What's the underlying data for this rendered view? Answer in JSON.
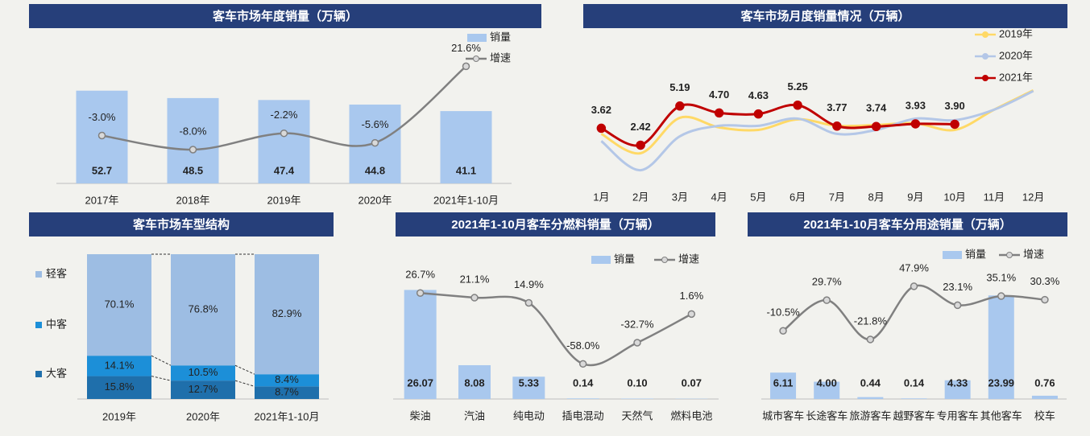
{
  "chart_data": [
    {
      "type": "bar",
      "title": "客车市场年度销量（万辆）",
      "categories": [
        "2017年",
        "2018年",
        "2019年",
        "2020年",
        "2021年1-10月"
      ],
      "series": [
        {
          "name": "销量",
          "color": "#a9c8ee",
          "values": [
            52.7,
            48.5,
            47.4,
            44.8,
            41.1
          ]
        },
        {
          "name": "增速",
          "color": "#808080",
          "axis": "y2",
          "values": [
            -3.0,
            -8.0,
            -2.2,
            -5.6,
            21.6
          ],
          "value_labels": [
            "-3.0%",
            "-8.0%",
            "-2.2%",
            "-5.6%",
            "21.6%"
          ]
        }
      ],
      "ylim": [
        0,
        80
      ],
      "y2lim": [
        -20,
        30
      ],
      "legend": "upper right"
    },
    {
      "type": "line",
      "title": "客车市场月度销量情况（万辆）",
      "categories": [
        "1月",
        "2月",
        "3月",
        "4月",
        "5月",
        "6月",
        "7月",
        "8月",
        "9月",
        "10月",
        "11月",
        "12月"
      ],
      "series": [
        {
          "name": "2019年",
          "color": "#ffd966",
          "values": [
            3.22,
            1.85,
            4.36,
            3.68,
            3.5,
            4.25,
            3.79,
            3.85,
            3.97,
            3.5,
            4.93,
            6.3
          ]
        },
        {
          "name": "2020年",
          "color": "#b4c7e7",
          "values": [
            2.71,
            0.65,
            3.05,
            3.79,
            3.79,
            4.3,
            3.22,
            3.5,
            4.3,
            4.19,
            4.93,
            6.25
          ]
        },
        {
          "name": "2021年",
          "color": "#c00000",
          "values": [
            3.62,
            2.42,
            5.19,
            4.7,
            4.63,
            5.25,
            3.77,
            3.74,
            3.93,
            3.9,
            null,
            null
          ],
          "value_labels": [
            "3.62",
            "2.42",
            "5.19",
            "4.70",
            "4.63",
            "5.25",
            "3.77",
            "3.74",
            "3.93",
            "3.90",
            null,
            null
          ]
        }
      ],
      "ylim": [
        0,
        7
      ],
      "legend": "upper right"
    },
    {
      "type": "bar",
      "stacked": true,
      "title": "客车市场车型结构",
      "categories": [
        "2019年",
        "2020年",
        "2021年1-10月"
      ],
      "series": [
        {
          "name": "大客",
          "color": "#1f6fab",
          "values": [
            15.8,
            12.7,
            8.7
          ],
          "value_labels": [
            "15.8%",
            "12.7%",
            "8.7%"
          ]
        },
        {
          "name": "中客",
          "color": "#1c8fd8",
          "values": [
            14.1,
            10.5,
            8.4
          ],
          "value_labels": [
            "14.1%",
            "10.5%",
            "8.4%"
          ]
        },
        {
          "name": "轻客",
          "color": "#9dbde3",
          "values": [
            70.1,
            76.8,
            82.9
          ],
          "value_labels": [
            "70.1%",
            "76.8%",
            "82.9%"
          ]
        }
      ],
      "ylim": [
        0,
        100
      ],
      "legend": "left"
    },
    {
      "type": "bar",
      "title": "2021年1-10月客车分燃料销量（万辆）",
      "categories": [
        "柴油",
        "汽油",
        "纯电动",
        "插电混动",
        "天然气",
        "燃料电池"
      ],
      "series": [
        {
          "name": "销量",
          "color": "#a9c8ee",
          "values": [
            26.07,
            8.08,
            5.33,
            0.14,
            0.1,
            0.07
          ],
          "value_labels": [
            "26.07",
            "8.08",
            "5.33",
            "0.14",
            "0.10",
            "0.07"
          ]
        },
        {
          "name": "增速",
          "color": "#808080",
          "axis": "y2",
          "values": [
            26.7,
            21.1,
            14.9,
            -58.0,
            -32.7,
            1.6
          ],
          "value_labels": [
            "26.7%",
            "21.1%",
            "14.9%",
            "-58.0%",
            "-32.7%",
            "1.6%"
          ]
        }
      ],
      "ylim": [
        0,
        30
      ],
      "y2lim": [
        -100,
        50
      ],
      "legend": "upper right"
    },
    {
      "type": "bar",
      "title": "2021年1-10月客车分用途销量（万辆）",
      "categories": [
        "城市客车",
        "长途客车",
        "旅游客车",
        "越野客车",
        "专用客车",
        "其他客车",
        "校车"
      ],
      "series": [
        {
          "name": "销量",
          "color": "#a9c8ee",
          "values": [
            6.11,
            4.0,
            0.44,
            0.14,
            4.33,
            23.99,
            0.76
          ],
          "value_labels": [
            "6.11",
            "4.00",
            "0.44",
            "0.14",
            "4.33",
            "23.99",
            "0.76"
          ]
        },
        {
          "name": "增速",
          "color": "#808080",
          "axis": "y2",
          "values": [
            -10.5,
            29.7,
            -21.8,
            47.9,
            23.1,
            35.1,
            30.3
          ],
          "value_labels": [
            "-10.5%",
            "29.7%",
            "-21.8%",
            "47.9%",
            "23.1%",
            "35.1%",
            "30.3%"
          ]
        }
      ],
      "ylim": [
        0,
        30
      ],
      "y2lim": [
        -100,
        70
      ],
      "legend": "upper right"
    }
  ]
}
